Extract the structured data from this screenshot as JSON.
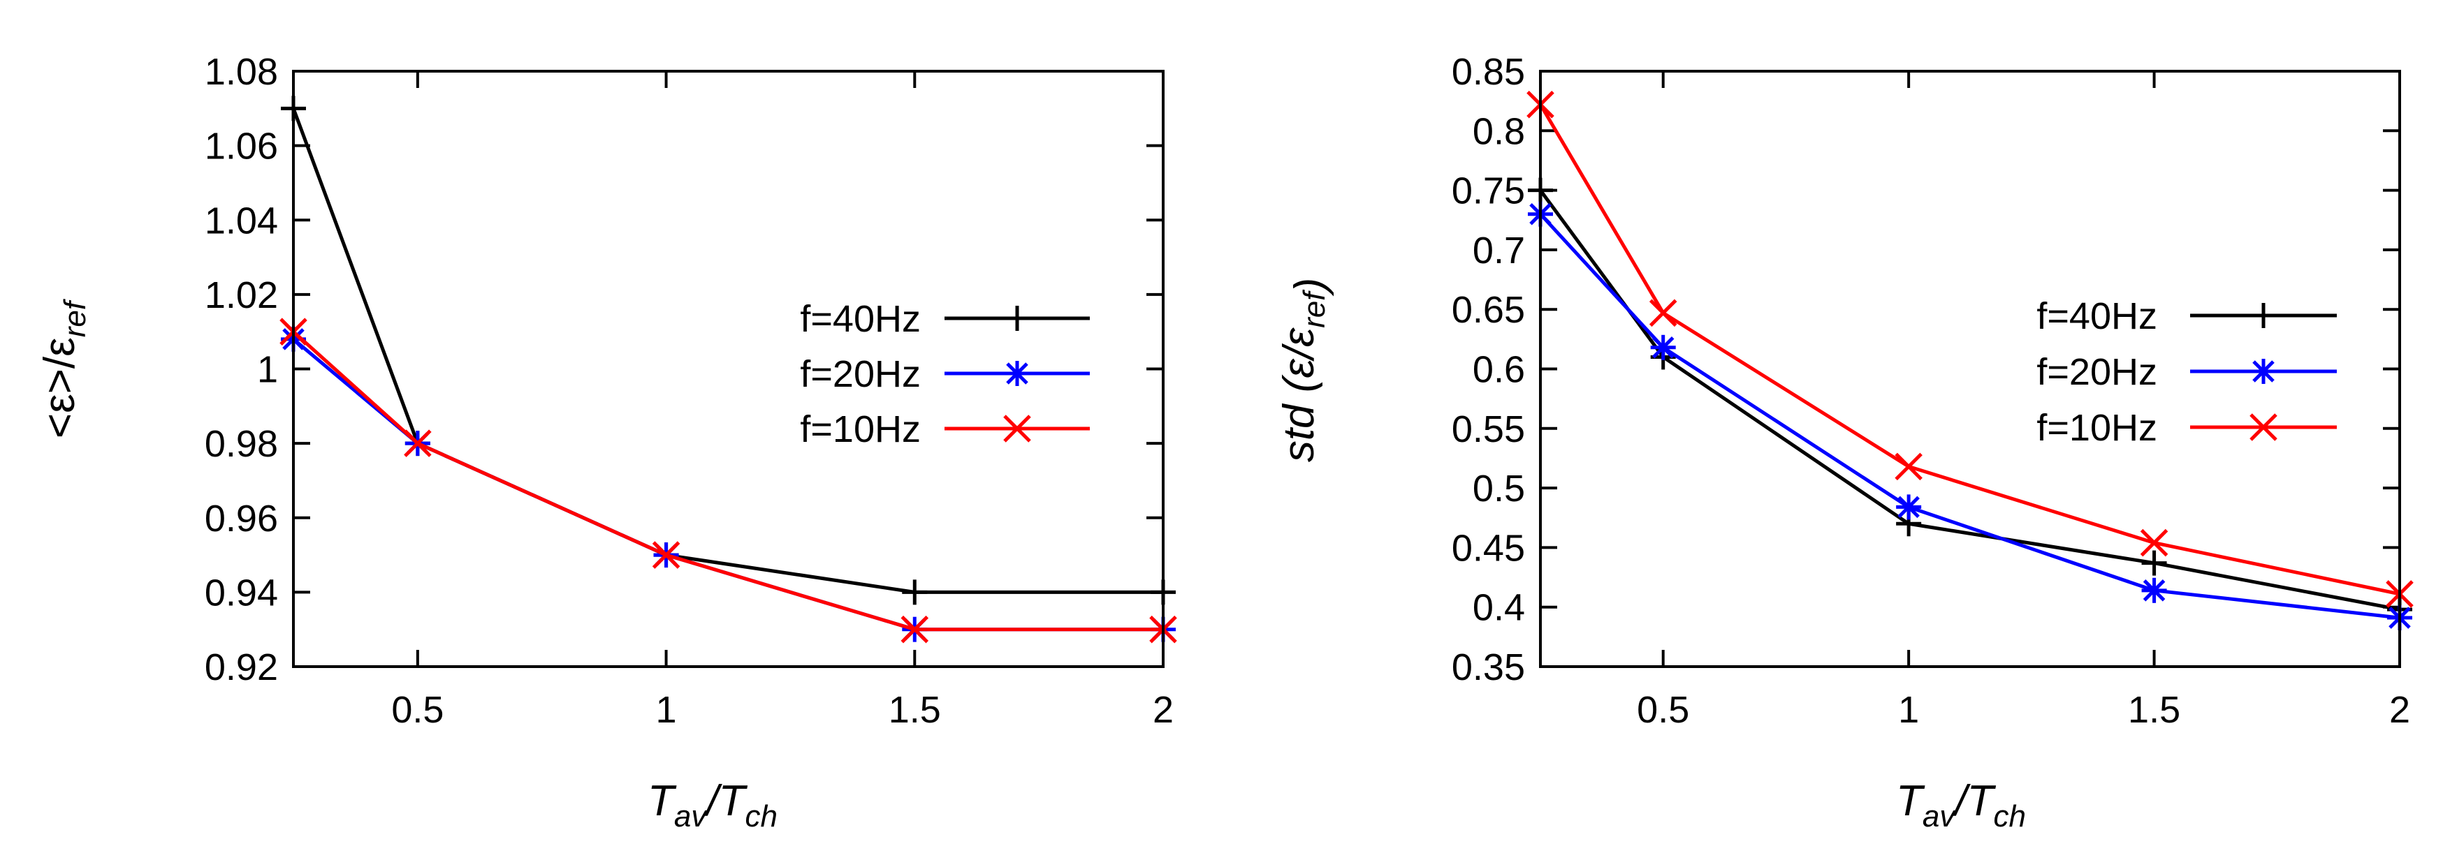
{
  "chart_data": [
    {
      "type": "line",
      "title": "",
      "xlabel": {
        "base1": "T",
        "sub1": "av",
        "mid": "/T",
        "sub2": "ch"
      },
      "ylabel": {
        "prefix": "<",
        "eps1": "ε",
        "mid": ">/",
        "eps2": "ε",
        "sub": "ref"
      },
      "xlim": [
        0.25,
        2
      ],
      "ylim": [
        0.92,
        1.08
      ],
      "xticks": [
        0.5,
        1,
        1.5,
        2
      ],
      "yticks": [
        0.92,
        0.94,
        0.96,
        0.98,
        1,
        1.02,
        1.04,
        1.06,
        1.08
      ],
      "legend_position": "center-right",
      "x": [
        0.25,
        0.5,
        1,
        1.5,
        2
      ],
      "series": [
        {
          "name": "f=40Hz",
          "color": "#000000",
          "marker": "plus",
          "values": [
            1.07,
            0.98,
            0.95,
            0.94,
            0.94
          ]
        },
        {
          "name": "f=20Hz",
          "color": "#0000ff",
          "marker": "star",
          "values": [
            1.008,
            0.98,
            0.95,
            0.93,
            0.93
          ]
        },
        {
          "name": "f=10Hz",
          "color": "#ff0000",
          "marker": "cross",
          "values": [
            1.01,
            0.98,
            0.95,
            0.93,
            0.93
          ]
        }
      ]
    },
    {
      "type": "line",
      "title": "",
      "xlabel": {
        "base1": "T",
        "sub1": "av",
        "mid": "/T",
        "sub2": "ch"
      },
      "ylabel": {
        "prefix": "std",
        "open": " (",
        "eps1": "ε",
        "mid": "/",
        "eps2": "ε",
        "sub": "ref",
        "close": ")"
      },
      "xlim": [
        0.25,
        2
      ],
      "ylim": [
        0.35,
        0.85
      ],
      "xticks": [
        0.5,
        1,
        1.5,
        2
      ],
      "yticks": [
        0.35,
        0.4,
        0.45,
        0.5,
        0.55,
        0.6,
        0.65,
        0.7,
        0.75,
        0.8,
        0.85
      ],
      "legend_position": "center-right",
      "x": [
        0.25,
        0.5,
        1,
        1.5,
        2
      ],
      "series": [
        {
          "name": "f=40Hz",
          "color": "#000000",
          "marker": "plus",
          "values": [
            0.75,
            0.61,
            0.47,
            0.437,
            0.398
          ]
        },
        {
          "name": "f=20Hz",
          "color": "#0000ff",
          "marker": "star",
          "values": [
            0.73,
            0.618,
            0.484,
            0.414,
            0.391
          ]
        },
        {
          "name": "f=10Hz",
          "color": "#ff0000",
          "marker": "cross",
          "values": [
            0.822,
            0.647,
            0.518,
            0.454,
            0.411
          ]
        }
      ]
    }
  ]
}
